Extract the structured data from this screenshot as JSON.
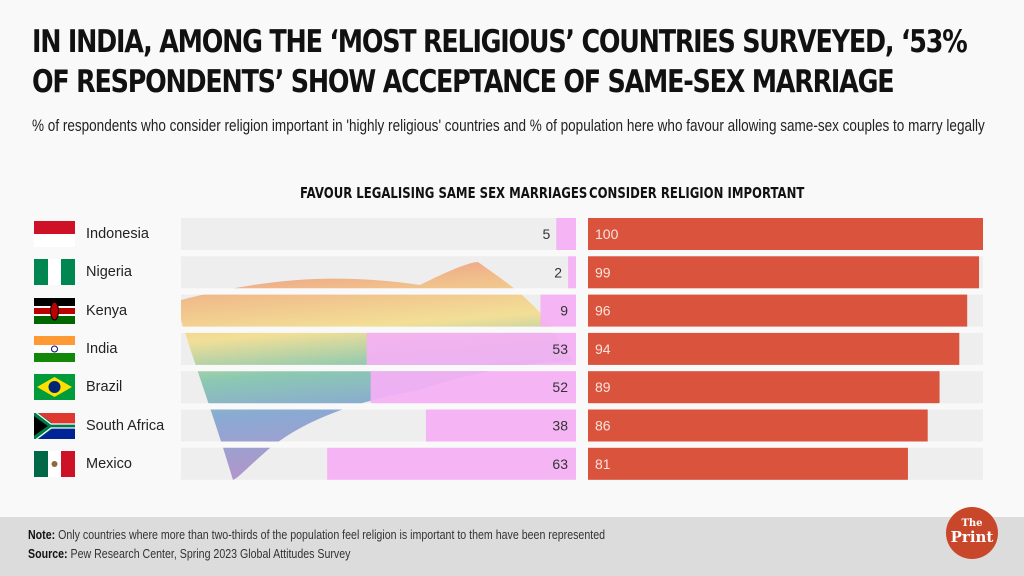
{
  "header": {
    "title": "In India, among the ‘most religious’ countries surveyed, ‘53% of respondents’ show acceptance of same-sex marriage",
    "subtitle": "% of respondents who consider religion important in 'highly religious' countries and % of population here who favour allowing same-sex couples to marry legally"
  },
  "colors": {
    "favour_bar": "#f5b0f5",
    "religion_bar": "#d9533d",
    "track": "#eeeeee",
    "footer_bg": "#dcdcdc",
    "logo": "#c8472a"
  },
  "chart_data": {
    "type": "bar",
    "orientation": "horizontal",
    "title": "In India, among the ‘most religious’ countries surveyed, ‘53% of respondents’ show acceptance of same-sex marriage",
    "categories": [
      "Indonesia",
      "Nigeria",
      "Kenya",
      "India",
      "Brazil",
      "South Africa",
      "Mexico"
    ],
    "series": [
      {
        "name": "Favour legalising same sex marriages",
        "values": [
          5,
          2,
          9,
          53,
          52,
          38,
          63
        ],
        "direction": "right-to-left"
      },
      {
        "name": "Consider religion important",
        "values": [
          100,
          99,
          96,
          94,
          89,
          86,
          81
        ],
        "direction": "left-to-right"
      }
    ],
    "xlim": [
      0,
      100
    ],
    "units": "%",
    "grid": false,
    "legend": "column-headers-top"
  },
  "rows": [
    {
      "country": "Indonesia",
      "flag": "indonesia-flag"
    },
    {
      "country": "Nigeria",
      "flag": "nigeria-flag"
    },
    {
      "country": "Kenya",
      "flag": "kenya-flag"
    },
    {
      "country": "India",
      "flag": "india-flag"
    },
    {
      "country": "Brazil",
      "flag": "brazil-flag"
    },
    {
      "country": "South Africa",
      "flag": "south-africa-flag"
    },
    {
      "country": "Mexico",
      "flag": "mexico-flag"
    }
  ],
  "column_heads": {
    "left": "Favour legalising same sex marriages",
    "right": "Consider religion important"
  },
  "background_image": "rainbow-pride-flag",
  "footer": {
    "note_label": "Note:",
    "note_text": " Only countries where more than two-thirds of the population feel religion is important to them have been represented",
    "source_label": "Source:",
    "source_text": " Pew Research Center, Spring 2023 Global Attitudes Survey"
  },
  "logo": {
    "the": "The",
    "print": "Print"
  }
}
